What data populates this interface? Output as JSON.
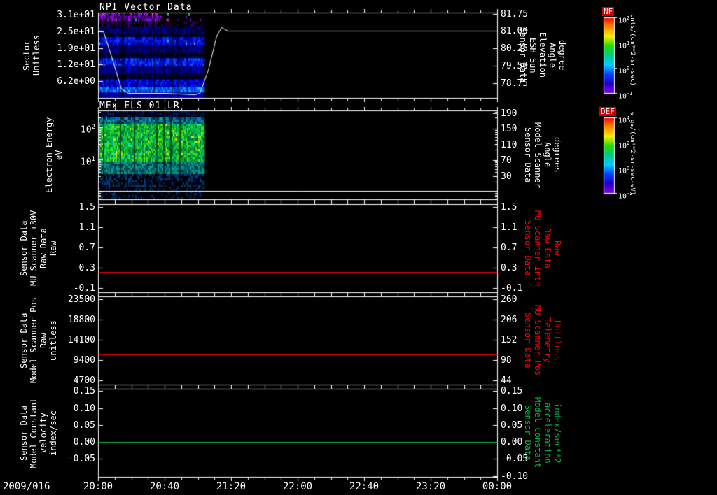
{
  "app": {
    "description": "Multi-panel space physics time-series and spectrogram plot",
    "background_color": "#000000",
    "foreground_color": "#ffffff"
  },
  "chart_data": {
    "type": "multi-panel-timeseries",
    "x_axis": {
      "date_label": "2009/016",
      "range_minutes": [
        0,
        240
      ],
      "start_time": "20:00",
      "end_time": "00:00",
      "major_tick_minutes": 40,
      "minor_tick_minutes": 10,
      "tick_labels": [
        "20:00",
        "20:40",
        "21:20",
        "22:00",
        "22:40",
        "23:20",
        "00:00"
      ]
    },
    "panels": [
      {
        "id": "npi-vector-data",
        "type": "spectrogram+line",
        "title": "NPI Vector Data",
        "left_label": "Sector\nUnitless",
        "right_label": "Sensor Data\nESH Sun Elevation\nAngle\ndegree",
        "right_label_color": "#ffffff",
        "left_axis": {
          "scale": "linear",
          "range": [
            0,
            32
          ],
          "ticks": [
            {
              "v": 31.25,
              "label": "3.1e+01"
            },
            {
              "v": 25.0,
              "label": "2.5e+01"
            },
            {
              "v": 18.75,
              "label": "1.9e+01"
            },
            {
              "v": 12.5,
              "label": "1.2e+01"
            },
            {
              "v": 6.25,
              "label": "6.2e+00"
            }
          ]
        },
        "right_axis": {
          "scale": "linear",
          "range": [
            78.1,
            81.8
          ],
          "ticks": [
            {
              "v": 81.75,
              "label": "81.75"
            },
            {
              "v": 81.0,
              "label": "81.00"
            },
            {
              "v": 80.25,
              "label": "80.25"
            },
            {
              "v": 79.5,
              "label": "79.50"
            },
            {
              "v": 78.75,
              "label": "78.75"
            }
          ]
        },
        "series": [
          {
            "name": "esh-sun-elevation-angle",
            "axis": "right",
            "color": "#ffffff",
            "points": [
              [
                0,
                81.0
              ],
              [
                3,
                81.0
              ],
              [
                8,
                79.9
              ],
              [
                14,
                78.5
              ],
              [
                18,
                78.32
              ],
              [
                40,
                78.3
              ],
              [
                58,
                78.25
              ],
              [
                61,
                78.3
              ],
              [
                66,
                79.3
              ],
              [
                71,
                80.8
              ],
              [
                74,
                81.15
              ],
              [
                78,
                81.0
              ],
              [
                240,
                81.0
              ]
            ]
          }
        ],
        "spectrogram": {
          "t_extent_min": [
            0,
            64
          ],
          "rows": 32,
          "bands": [
            {
              "rows": [
                0,
                2
              ],
              "colors": [
                "#7a00d0",
                "#9a00e8",
                "#5a00a8",
                "#30006a",
                "#000000"
              ],
              "sparse_after_min": 38,
              "rare_colors": [
                "#00cc66",
                "#ee2299"
              ],
              "rare_p": 0.03
            },
            {
              "rows": [
                3,
                4
              ],
              "colors": [
                "#10002a",
                "#000000",
                "#2a0060",
                "#000000"
              ]
            },
            {
              "rows": [
                5,
                7
              ],
              "colors": [
                "#000070",
                "#0000a0",
                "#000046",
                "#00002a"
              ]
            },
            {
              "rows": [
                8,
                8
              ],
              "colors": [
                "#000020",
                "#000000",
                "#000050"
              ]
            },
            {
              "rows": [
                9,
                11
              ],
              "colors": [
                "#0000c8",
                "#0018f0",
                "#00008a",
                "#0030ff"
              ],
              "rare_colors": [
                "#00ccff"
              ],
              "rare_p": 0.02
            },
            {
              "rows": [
                12,
                14
              ],
              "colors": [
                "#000060",
                "#000090",
                "#000040"
              ]
            },
            {
              "rows": [
                15,
                16
              ],
              "colors": [
                "#000018",
                "#000000",
                "#000060"
              ]
            },
            {
              "rows": [
                17,
                19
              ],
              "colors": [
                "#0010e0",
                "#0030ff",
                "#0000a0",
                "#0050ff"
              ]
            },
            {
              "rows": [
                20,
                22
              ],
              "colors": [
                "#000078",
                "#0000a8",
                "#000050"
              ]
            },
            {
              "rows": [
                23,
                24
              ],
              "colors": [
                "#000020",
                "#000000",
                "#000058"
              ]
            },
            {
              "rows": [
                25,
                27
              ],
              "colors": [
                "#0000cc",
                "#0020ee",
                "#000090"
              ]
            },
            {
              "rows": [
                28,
                29
              ],
              "colors": [
                "#0048ff",
                "#0068ff",
                "#0030e0",
                "#00a0ff"
              ]
            },
            {
              "rows": [
                30,
                31
              ],
              "colors": [
                "#0000a0",
                "#000070",
                "#0000c0"
              ]
            }
          ]
        }
      },
      {
        "id": "mex-els-01-lr",
        "type": "spectrogram+line",
        "title": "MEx ELS-01 LR",
        "left_label": "Electron Energy\neV",
        "right_label": "Sensor Data\nModel Scanner\nAngle\ndegrees",
        "right_label_color": "#ffffff",
        "left_axis": {
          "scale": "log",
          "range": [
            0.58,
            331
          ],
          "ticks": [
            {
              "v": 100,
              "label": "10^2"
            },
            {
              "v": 10,
              "label": "10^1"
            }
          ]
        },
        "right_axis": {
          "scale": "linear",
          "range": [
            -29,
            197
          ],
          "ticks": [
            {
              "v": 190,
              "label": "190"
            },
            {
              "v": 150,
              "label": "150"
            },
            {
              "v": 110,
              "label": "110"
            },
            {
              "v": 70,
              "label": "70"
            },
            {
              "v": 30,
              "label": "30"
            }
          ]
        },
        "series": [
          {
            "name": "model-scanner-angle",
            "axis": "right",
            "color": "#ffffff",
            "points": [
              [
                0,
                -8
              ],
              [
                240,
                -8
              ]
            ]
          }
        ],
        "spectrogram": {
          "t_extent_min": [
            0,
            64
          ],
          "bands": [
            {
              "frac": [
                0,
                0.06
              ],
              "colors": [
                "#000020",
                "#000000",
                "#000048",
                "#001a60"
              ]
            },
            {
              "frac": [
                0.06,
                0.14
              ],
              "colors": [
                "#006688",
                "#008899",
                "#004466",
                "#00aa99",
                "#002244"
              ]
            },
            {
              "frac": [
                0.14,
                0.58
              ],
              "colors": [
                "#00c832",
                "#2cd41e",
                "#00b450",
                "#52e00a",
                "#009c46",
                "#00aa6e",
                "#0a8c28",
                "#006e32"
              ],
              "rare_colors": [
                "#d8e800",
                "#00e6c8"
              ],
              "rare_p": 0.05
            },
            {
              "frac": [
                0.58,
                0.72
              ],
              "colors": [
                "#008878",
                "#00a08c",
                "#005a64",
                "#003c50"
              ]
            },
            {
              "frac": [
                0.72,
                0.86
              ],
              "colors": [
                "#002850",
                "#00407c",
                "#000030",
                "#000000",
                "#000000"
              ]
            },
            {
              "frac": [
                0.86,
                1.01
              ],
              "colors": [
                "#000000",
                "#000000",
                "#000000",
                "#000020",
                "#003060"
              ]
            }
          ]
        }
      },
      {
        "id": "mu-scanner-30v",
        "type": "line",
        "left_label": "Sensor Data\nMU Scanner +30V\nRaw Data\nRaw",
        "right_label": "Sensor Data\nMU Scanner IntH\nRaw Data\nRaw",
        "right_label_color": "#ff0000",
        "left_axis": {
          "scale": "linear",
          "range": [
            -0.183,
            1.555
          ],
          "ticks": [
            {
              "v": 1.5,
              "label": "1.5"
            },
            {
              "v": 1.1,
              "label": "1.1"
            },
            {
              "v": 0.7,
              "label": "0.7"
            },
            {
              "v": 0.3,
              "label": "0.3"
            },
            {
              "v": -0.1,
              "label": "-0.1"
            }
          ]
        },
        "right_axis": {
          "scale": "linear",
          "range": [
            -0.183,
            1.555
          ],
          "ticks": [
            {
              "v": 1.5,
              "label": "1.5"
            },
            {
              "v": 1.1,
              "label": "1.1"
            },
            {
              "v": 0.7,
              "label": "0.7"
            },
            {
              "v": 0.3,
              "label": "0.3"
            },
            {
              "v": -0.1,
              "label": "-0.1"
            }
          ]
        },
        "series": [
          {
            "name": "mu-scanner-inth-raw",
            "axis": "right",
            "color": "#ff0000",
            "points": [
              [
                0,
                0.22
              ],
              [
                240,
                0.22
              ]
            ]
          }
        ]
      },
      {
        "id": "model-scanner-pos",
        "type": "line",
        "left_label": "Sensor Data\nModel Scanner Pos\nRaw\nunitless",
        "right_label": "Sensor Data\nMU Scanner Pos\nTelemetry\nUnitless",
        "right_label_color": "#ff0000",
        "left_axis": {
          "scale": "linear",
          "range": [
            3728,
            24148
          ],
          "ticks": [
            {
              "v": 23500,
              "label": "23500"
            },
            {
              "v": 18800,
              "label": "18800"
            },
            {
              "v": 14100,
              "label": "14100"
            },
            {
              "v": 9400,
              "label": "9400"
            },
            {
              "v": 4700,
              "label": "4700"
            }
          ]
        },
        "right_axis": {
          "scale": "linear",
          "range": [
            32.8,
            267.4
          ],
          "ticks": [
            {
              "v": 260,
              "label": "260"
            },
            {
              "v": 206,
              "label": "206"
            },
            {
              "v": 152,
              "label": "152"
            },
            {
              "v": 98,
              "label": "98"
            },
            {
              "v": 44,
              "label": "44"
            }
          ]
        },
        "series": [
          {
            "name": "mu-scanner-pos-telemetry",
            "axis": "right",
            "color": "#ff0000",
            "points": [
              [
                0,
                113
              ],
              [
                240,
                113
              ]
            ]
          }
        ]
      },
      {
        "id": "model-constant",
        "type": "line",
        "left_label": "Sensor Data\nModel Constant\nvelocity\nindex/sec",
        "right_label": "Sensor Data\nModel Constant\nacceleration\nindex/sec**2",
        "right_label_color": "#00bb44",
        "left_axis": {
          "scale": "linear",
          "range": [
            -0.103,
            0.157
          ],
          "ticks": [
            {
              "v": 0.15,
              "label": "0.15"
            },
            {
              "v": 0.1,
              "label": "0.10"
            },
            {
              "v": 0.05,
              "label": "0.05"
            },
            {
              "v": 0.0,
              "label": "0.00"
            },
            {
              "v": -0.05,
              "label": "-0.05"
            }
          ]
        },
        "right_axis": {
          "scale": "linear",
          "range": [
            -0.103,
            0.157
          ],
          "ticks": [
            {
              "v": 0.15,
              "label": "0.15"
            },
            {
              "v": 0.1,
              "label": "0.10"
            },
            {
              "v": 0.05,
              "label": "0.05"
            },
            {
              "v": 0.0,
              "label": "0.00"
            },
            {
              "v": -0.05,
              "label": "-0.05"
            },
            {
              "v": -0.1,
              "label": "-0.10"
            }
          ]
        },
        "series": [
          {
            "name": "model-constant-acceleration",
            "axis": "right",
            "color": "#00bb44",
            "points": [
              [
                0,
                0.0
              ],
              [
                240,
                0.0
              ]
            ]
          }
        ]
      }
    ],
    "colorbars": [
      {
        "title": "NF",
        "unit": "cnts/(cm**2-sr-sec)",
        "tick_labels": [
          "10^2",
          "10^1",
          "10^0",
          "10^-1"
        ],
        "gradient": [
          "#ff0000",
          "#ff8800",
          "#ffee00",
          "#22dd00",
          "#00cc88",
          "#00ccff",
          "#0044ff",
          "#2200cc",
          "#8800dd"
        ]
      },
      {
        "title": "DEF",
        "unit": "ergs/(cm**2-sr-sec-eV)",
        "tick_labels": [
          "10^4",
          "10^2",
          "10^0",
          "10^-2"
        ],
        "gradient": [
          "#ff0000",
          "#ff8800",
          "#ffee00",
          "#22dd00",
          "#00cc88",
          "#00ccff",
          "#0044ff",
          "#2200cc",
          "#8800dd"
        ]
      }
    ]
  }
}
